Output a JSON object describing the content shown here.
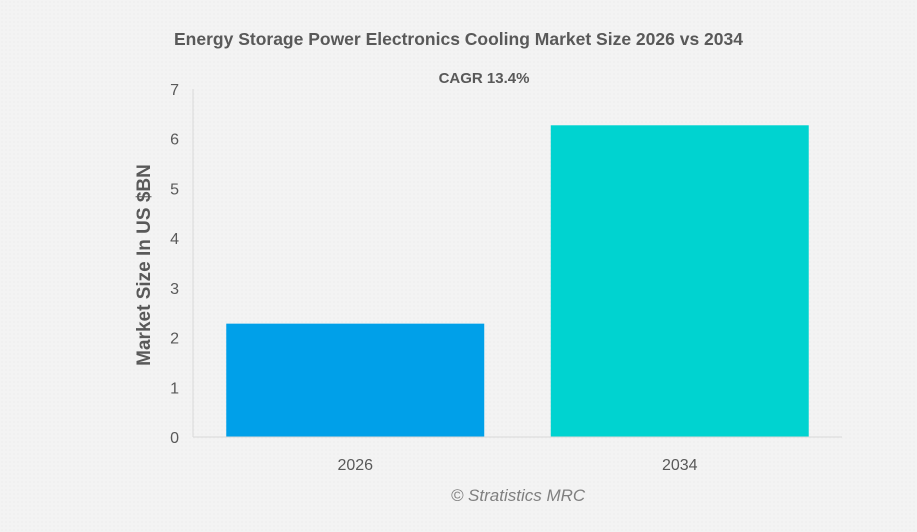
{
  "chart_data": {
    "type": "bar",
    "title": "Energy Storage Power Electronics Cooling Market Size 2026 vs 2034",
    "subtitle": "CAGR 13.4%",
    "xlabel": "",
    "ylabel": "Market Size In US $BN",
    "categories": [
      "2026",
      "2034"
    ],
    "values": [
      2.28,
      6.27
    ],
    "colors": [
      "#00a0e9",
      "#00d3d0"
    ],
    "ylim": [
      0,
      7
    ],
    "yticks": [
      0,
      1,
      2,
      3,
      4,
      5,
      6,
      7
    ],
    "grid": false,
    "legend": "none"
  },
  "watermark": "© Stratistics MRC"
}
